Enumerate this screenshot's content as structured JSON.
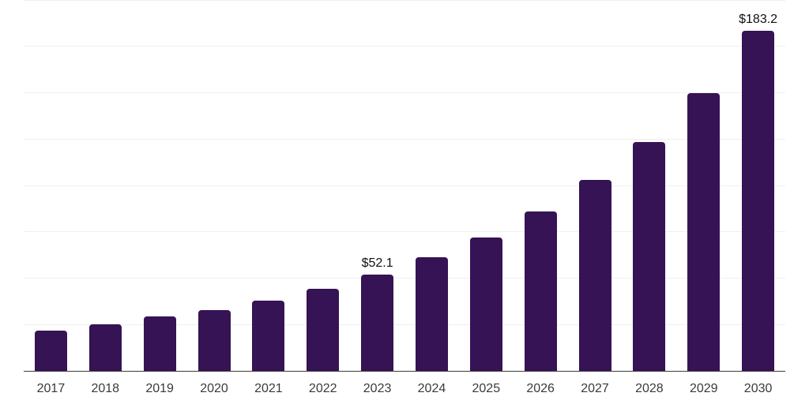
{
  "chart_data": {
    "type": "bar",
    "title": "",
    "xlabel": "",
    "ylabel": "",
    "categories": [
      "2017",
      "2018",
      "2019",
      "2020",
      "2021",
      "2022",
      "2023",
      "2024",
      "2025",
      "2026",
      "2027",
      "2028",
      "2029",
      "2030"
    ],
    "values": [
      21.8,
      25.3,
      29.5,
      32.8,
      38.0,
      44.4,
      52.1,
      61.1,
      72.0,
      85.9,
      102.8,
      123.2,
      149.7,
      183.2
    ],
    "data_labels": {
      "2023": "$52.1",
      "2030": "$183.2"
    },
    "ylim": [
      0,
      200
    ],
    "gridline_values": [
      25,
      50,
      75,
      100,
      125,
      150,
      175,
      200
    ],
    "grid": true,
    "legend": false,
    "colors": {
      "bar": "#361354",
      "gridline": "#efefef",
      "axis": "#3c3c3c",
      "tick_label": "#3a3a3a",
      "data_label": "#111111",
      "background": "#ffffff"
    }
  }
}
